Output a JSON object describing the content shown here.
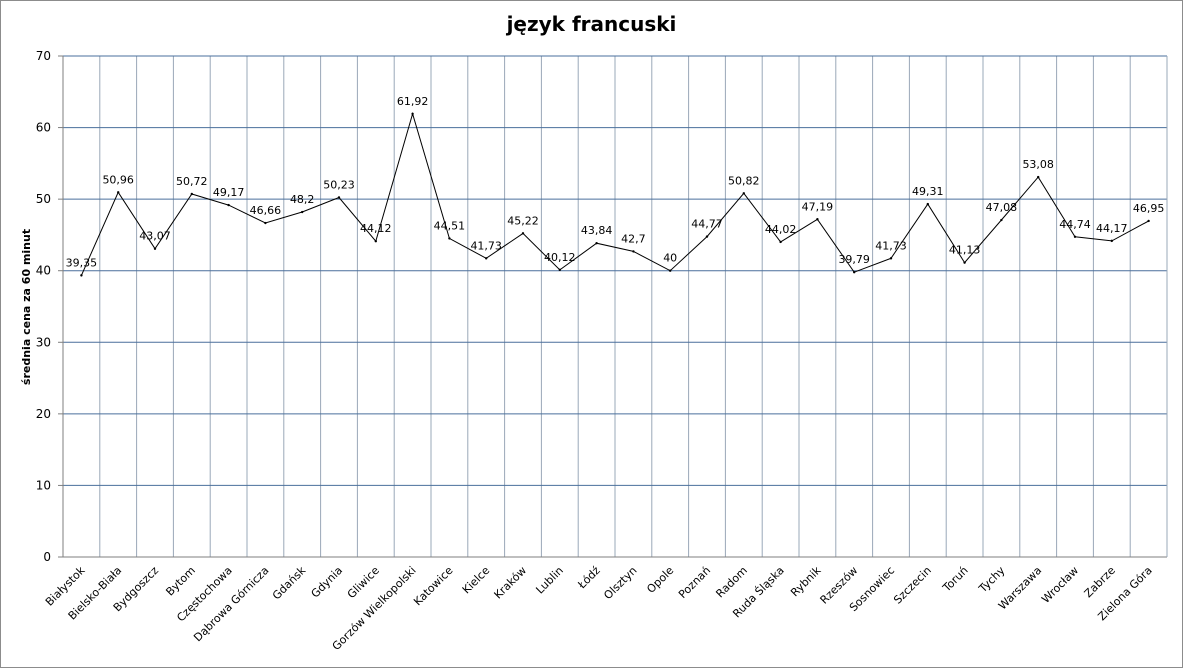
{
  "chart_data": {
    "type": "line",
    "title": "język francuski",
    "xlabel": "",
    "ylabel": "średnia cena za 60 minut",
    "ylim": [
      0,
      70
    ],
    "yticks": [
      0,
      10,
      20,
      30,
      40,
      50,
      60,
      70
    ],
    "grid": true,
    "legend": "none",
    "colors": {
      "line": "#000000",
      "grid_major": "#4a6f9c",
      "grid_minor": "#9aa8b8"
    },
    "categories": [
      "Białystok",
      "Bielsko-Biała",
      "Bydgoszcz",
      "Bytom",
      "Częstochowa",
      "Dąbrowa Górnicza",
      "Gdańsk",
      "Gdynia",
      "Gliwice",
      "Gorzów Wielkopolski",
      "Katowice",
      "Kielce",
      "Kraków",
      "Lublin",
      "Łódź",
      "Olsztyn",
      "Opole",
      "Poznań",
      "Radom",
      "Ruda Śląska",
      "Rybnik",
      "Rzeszów",
      "Sosnowiec",
      "Szczecin",
      "Toruń",
      "Tychy",
      "Warszawa",
      "Wrocław",
      "Zabrze",
      "Zielona Góra"
    ],
    "values": [
      39.35,
      50.96,
      43.07,
      50.72,
      49.17,
      46.66,
      48.2,
      50.23,
      44.12,
      61.92,
      44.51,
      41.73,
      45.22,
      40.12,
      43.84,
      42.7,
      40,
      44.77,
      50.82,
      44.02,
      47.19,
      39.79,
      41.73,
      49.31,
      41.13,
      47.08,
      53.08,
      44.74,
      44.17,
      46.95
    ],
    "data_labels": [
      "39,35",
      "50,96",
      "43,07",
      "50,72",
      "49,17",
      "46,66",
      "48,2",
      "50,23",
      "44,12",
      "61,92",
      "44,51",
      "41,73",
      "45,22",
      "40,12",
      "43,84",
      "42,7",
      "40",
      "44,77",
      "50,82",
      "44,02",
      "47,19",
      "39,79",
      "41,73",
      "49,31",
      "41,13",
      "47,08",
      "53,08",
      "44,74",
      "44,17",
      "46,95"
    ]
  }
}
